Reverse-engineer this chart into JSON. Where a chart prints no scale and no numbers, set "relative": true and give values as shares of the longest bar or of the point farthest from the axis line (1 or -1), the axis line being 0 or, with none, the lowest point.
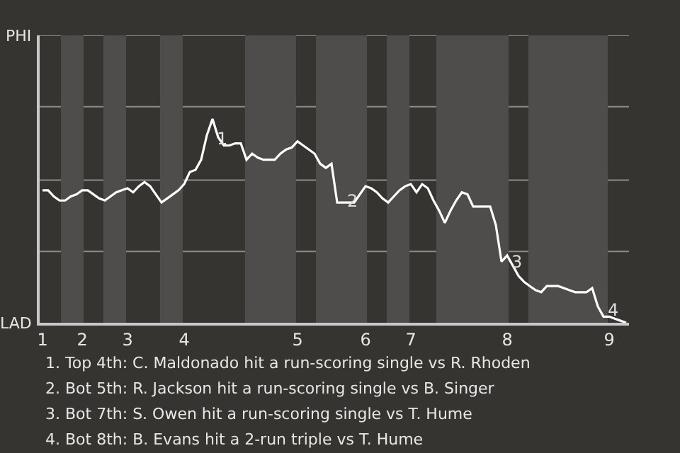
{
  "chart_data": {
    "type": "line",
    "categories": [
      "1",
      null,
      null,
      null,
      null,
      null,
      null,
      "2",
      null,
      null,
      null,
      null,
      null,
      null,
      null,
      "3",
      null,
      null,
      null,
      null,
      null,
      null,
      null,
      null,
      null,
      "4",
      null,
      null,
      null,
      null,
      null,
      null,
      null,
      null,
      null,
      null,
      null,
      null,
      null,
      null,
      null,
      null,
      null,
      null,
      null,
      "5",
      null,
      null,
      null,
      null,
      null,
      null,
      null,
      null,
      null,
      null,
      null,
      "6",
      null,
      null,
      null,
      null,
      null,
      null,
      null,
      "7",
      null,
      null,
      null,
      null,
      null,
      null,
      null,
      null,
      null,
      null,
      null,
      null,
      null,
      null,
      null,
      null,
      "8",
      null,
      null,
      null,
      null,
      null,
      null,
      null,
      null,
      null,
      null,
      null,
      null,
      null,
      null,
      null,
      null,
      null,
      "9",
      null,
      null,
      null
    ],
    "relative": true,
    "series": [
      {
        "color": "#ffffff",
        "values": [
          0.65,
          0.65,
          0.62,
          0.6,
          0.6,
          0.62,
          0.63,
          0.65,
          0.65,
          0.63,
          0.61,
          0.6,
          0.62,
          0.64,
          0.65,
          0.66,
          0.64,
          0.67,
          0.69,
          0.67,
          0.63,
          0.59,
          0.61,
          0.63,
          0.65,
          0.68,
          0.74,
          0.75,
          0.8,
          0.92,
          1.0,
          0.91,
          0.87,
          0.87,
          0.88,
          0.88,
          0.8,
          0.83,
          0.81,
          0.8,
          0.8,
          0.8,
          0.83,
          0.85,
          0.86,
          0.89,
          0.87,
          0.85,
          0.83,
          0.78,
          0.76,
          0.78,
          0.59,
          0.59,
          0.59,
          0.59,
          0.63,
          0.67,
          0.66,
          0.64,
          0.61,
          0.59,
          0.62,
          0.65,
          0.67,
          0.68,
          0.64,
          0.68,
          0.66,
          0.6,
          0.55,
          0.49,
          0.55,
          0.6,
          0.64,
          0.63,
          0.57,
          0.57,
          0.57,
          0.57,
          0.48,
          0.3,
          0.33,
          0.28,
          0.23,
          0.2,
          0.18,
          0.16,
          0.15,
          0.18,
          0.18,
          0.18,
          0.17,
          0.16,
          0.15,
          0.15,
          0.15,
          0.17,
          0.08,
          0.03,
          0.03,
          0.02,
          0.01,
          0.0
        ]
      }
    ],
    "ref_lines": [
      {
        "axis": "y",
        "value": 0.35,
        "color": "#8c8b88"
      },
      {
        "axis": "y",
        "value": 0.7,
        "color": "#8c8b88"
      },
      {
        "axis": "y",
        "value": 1.06,
        "color": "#8c8b88"
      },
      {
        "axis": "y",
        "value": 1.41,
        "color": "#8c8b88"
      }
    ],
    "marker": "none",
    "line_style": "solid",
    "annotations": [
      "PHI",
      "LAD",
      {
        "text": "1",
        "y": 0.9
      },
      {
        "text": "2",
        "y": 0.6
      },
      {
        "text": "3",
        "y": 0.3
      },
      {
        "text": "4",
        "y": 0.06
      },
      "1. Top 4th: C. Maldonado hit a run-scoring single vs R. Rhoden",
      "2. Bot 5th: R. Jackson hit a run-scoring single vs B. Singer",
      "3. Bot 7th: S. Owen hit a run-scoring single vs T. Hume",
      "4. Bot 8th: B. Evans hit a 2-run triple vs T. Hume"
    ]
  }
}
